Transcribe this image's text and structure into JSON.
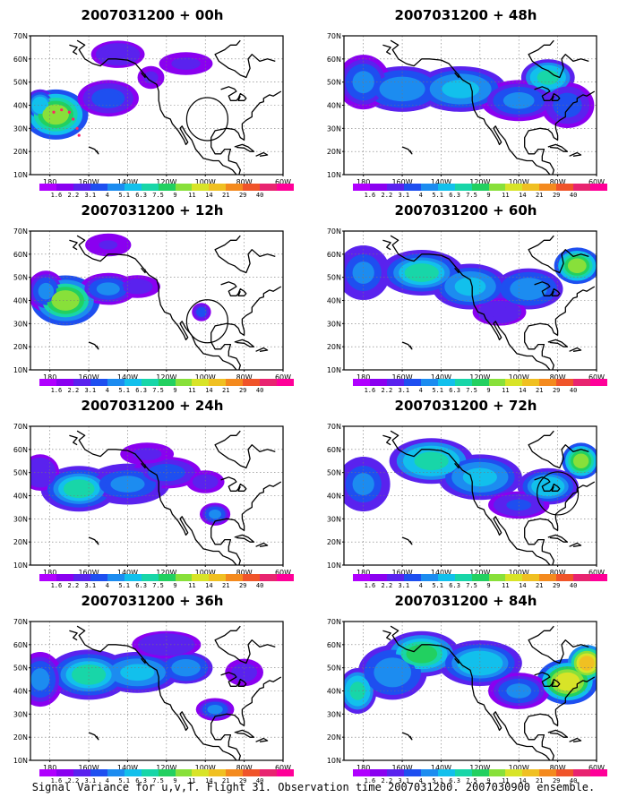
{
  "panels": [
    {
      "title": "2007031200 + 00h",
      "lead_hours": 0,
      "circle": {
        "lon": -99,
        "lat": 34
      }
    },
    {
      "title": "2007031200 + 48h",
      "lead_hours": 48,
      "circle": null
    },
    {
      "title": "2007031200 + 12h",
      "lead_hours": 12,
      "circle": {
        "lon": -99,
        "lat": 31
      }
    },
    {
      "title": "2007031200 + 60h",
      "lead_hours": 60,
      "circle": null
    },
    {
      "title": "2007031200 + 24h",
      "lead_hours": 24,
      "circle": null
    },
    {
      "title": "2007031200 + 72h",
      "lead_hours": 72,
      "circle": {
        "lon": -80,
        "lat": 41
      }
    },
    {
      "title": "2007031200 + 36h",
      "lead_hours": 36,
      "circle": null
    },
    {
      "title": "2007031200 + 84h",
      "lead_hours": 84,
      "circle": null
    }
  ],
  "axes": {
    "lat_labels": [
      "70N",
      "60N",
      "50N",
      "40N",
      "30N",
      "20N",
      "10N"
    ],
    "lon_labels": [
      "180",
      "160W",
      "140W",
      "120W",
      "100W",
      "80W",
      "60W"
    ],
    "lon_range": [
      -190,
      -60
    ],
    "lat_range": [
      10,
      70
    ]
  },
  "colorbar": {
    "colors": [
      "#b000ff",
      "#8a00f0",
      "#5a22ee",
      "#1e4ff0",
      "#1c8cf0",
      "#12c0ec",
      "#18d6a8",
      "#22d060",
      "#88e03a",
      "#d8e428",
      "#f0c022",
      "#f48a1e",
      "#f0542a",
      "#e82470",
      "#ff0098"
    ],
    "labels": [
      "1.6",
      "2.2",
      "3.1",
      "4",
      "5.1",
      "6.3",
      "7.5",
      "9",
      "11",
      "14",
      "21",
      "29",
      "40"
    ]
  },
  "flight_track": {
    "points": [
      [
        -178,
        37
      ],
      [
        -174,
        38
      ],
      [
        -170,
        37
      ],
      [
        -168,
        34
      ],
      [
        -166,
        30
      ],
      [
        -165,
        27
      ]
    ],
    "color": "#ff2266"
  },
  "caption": "Signal Variance for u,v,T. Flight 31. Observation time 2007031200. 2007030900 ensemble."
}
